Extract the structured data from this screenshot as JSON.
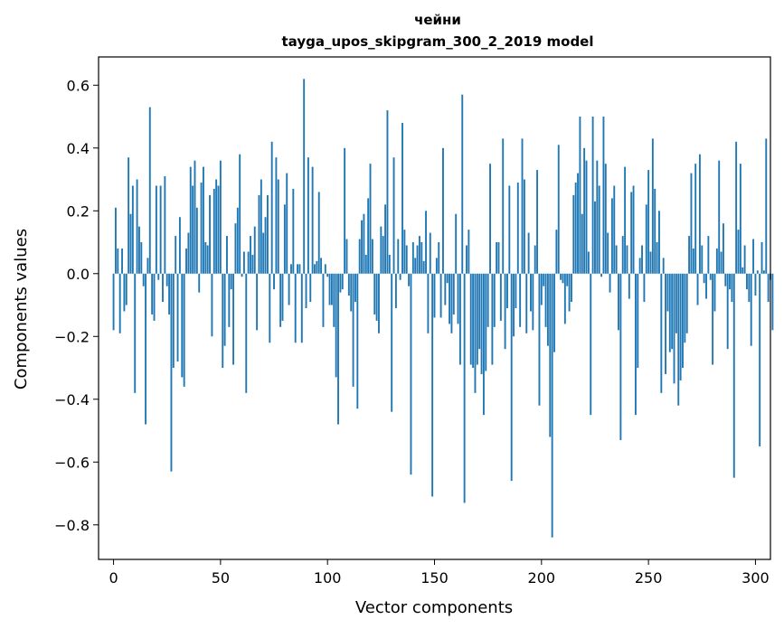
{
  "chart_data": {
    "type": "bar",
    "title": "чейни",
    "subtitle": "tayga_upos_skipgram_300_2_2019 model",
    "xlabel": "Vector components",
    "ylabel": "Components values",
    "xlim": [
      -7,
      307
    ],
    "ylim": [
      -0.91,
      0.69
    ],
    "xticks": [
      0,
      50,
      100,
      150,
      200,
      250,
      300
    ],
    "yticks": [
      0.6,
      0.4,
      0.2,
      0.0,
      -0.2,
      -0.4,
      -0.6,
      -0.8
    ],
    "ytick_labels": [
      "0.6",
      "0.4",
      "0.2",
      "0.0",
      "−0.2",
      "−0.4",
      "−0.6",
      "−0.8"
    ],
    "bar_color": "#1f77b4",
    "values": [
      -0.18,
      0.21,
      0.08,
      -0.19,
      0.08,
      -0.12,
      -0.1,
      0.37,
      0.19,
      0.28,
      -0.38,
      0.3,
      0.15,
      0.1,
      -0.04,
      -0.48,
      0.05,
      0.53,
      -0.13,
      -0.15,
      0.28,
      -0.02,
      0.28,
      -0.09,
      0.31,
      -0.04,
      -0.13,
      -0.63,
      -0.3,
      0.12,
      -0.28,
      0.18,
      -0.33,
      -0.36,
      0.08,
      0.13,
      0.34,
      0.28,
      0.36,
      0.21,
      -0.06,
      0.29,
      0.34,
      0.1,
      0.09,
      0.25,
      -0.2,
      0.27,
      0.3,
      0.28,
      0.36,
      -0.3,
      -0.23,
      0.12,
      -0.17,
      -0.05,
      -0.29,
      0.16,
      0.21,
      0.38,
      -0.01,
      0.07,
      -0.38,
      0.07,
      0.12,
      0.06,
      0.15,
      -0.18,
      0.25,
      0.3,
      0.13,
      0.18,
      0.25,
      -0.22,
      0.42,
      -0.05,
      0.37,
      0.3,
      -0.17,
      -0.15,
      0.22,
      0.32,
      -0.1,
      0.03,
      0.27,
      -0.22,
      0.03,
      0.03,
      -0.22,
      0.62,
      -0.11,
      0.37,
      -0.09,
      0.34,
      0.03,
      0.04,
      0.26,
      0.05,
      -0.17,
      0.03,
      -0.01,
      -0.1,
      -0.1,
      -0.17,
      -0.33,
      -0.48,
      -0.06,
      -0.05,
      0.4,
      0.11,
      -0.07,
      -0.12,
      -0.36,
      -0.09,
      -0.43,
      0.11,
      0.17,
      0.19,
      0.06,
      0.24,
      0.35,
      0.11,
      -0.13,
      -0.15,
      -0.19,
      0.15,
      0.12,
      0.22,
      0.52,
      0.06,
      -0.44,
      0.37,
      -0.11,
      0.11,
      -0.02,
      0.48,
      0.14,
      0.09,
      -0.04,
      -0.64,
      0.1,
      0.05,
      0.09,
      0.12,
      0.1,
      0.04,
      0.2,
      -0.19,
      0.13,
      -0.71,
      -0.14,
      0.05,
      0.1,
      -0.14,
      0.4,
      -0.1,
      -0.03,
      -0.16,
      -0.19,
      -0.13,
      0.19,
      -0.16,
      -0.29,
      0.57,
      -0.73,
      0.09,
      0.14,
      -0.29,
      -0.3,
      -0.38,
      -0.29,
      -0.24,
      -0.32,
      -0.45,
      -0.31,
      -0.17,
      0.35,
      -0.29,
      -0.17,
      0.1,
      0.1,
      -0.15,
      0.43,
      -0.24,
      -0.11,
      0.28,
      -0.66,
      -0.2,
      -0.11,
      0.29,
      -0.17,
      0.43,
      0.3,
      -0.19,
      0.13,
      -0.12,
      -0.18,
      0.09,
      0.33,
      -0.42,
      -0.1,
      -0.04,
      -0.17,
      -0.23,
      -0.52,
      -0.84,
      -0.25,
      0.14,
      0.41,
      -0.02,
      -0.03,
      -0.16,
      -0.04,
      -0.12,
      -0.09,
      0.25,
      0.29,
      0.32,
      0.5,
      0.19,
      0.4,
      0.36,
      0.07,
      -0.45,
      0.5,
      0.23,
      0.36,
      0.28,
      -0.01,
      0.5,
      0.35,
      0.13,
      -0.06,
      0.24,
      0.28,
      0.09,
      -0.18,
      -0.53,
      0.12,
      0.34,
      0.09,
      -0.08,
      0.26,
      0.28,
      -0.45,
      -0.3,
      0.05,
      0.09,
      -0.09,
      0.22,
      0.33,
      0.07,
      0.43,
      0.27,
      0.1,
      0.2,
      -0.38,
      0.05,
      -0.32,
      -0.12,
      -0.25,
      -0.24,
      -0.35,
      -0.19,
      -0.42,
      -0.34,
      -0.3,
      -0.22,
      -0.19,
      0.12,
      0.32,
      0.08,
      0.35,
      -0.1,
      0.38,
      0.09,
      -0.03,
      -0.08,
      0.12,
      -0.02,
      -0.29,
      -0.12,
      0.08,
      0.36,
      0.07,
      0.16,
      -0.04,
      -0.24,
      -0.05,
      -0.09,
      -0.65,
      0.42,
      0.14,
      0.35,
      0.02,
      0.09,
      -0.05,
      -0.09,
      -0.23,
      0.11,
      -0.07,
      0.01,
      -0.55,
      0.1,
      0.01,
      0.43,
      -0.09,
      -0.02,
      -0.18
    ]
  }
}
